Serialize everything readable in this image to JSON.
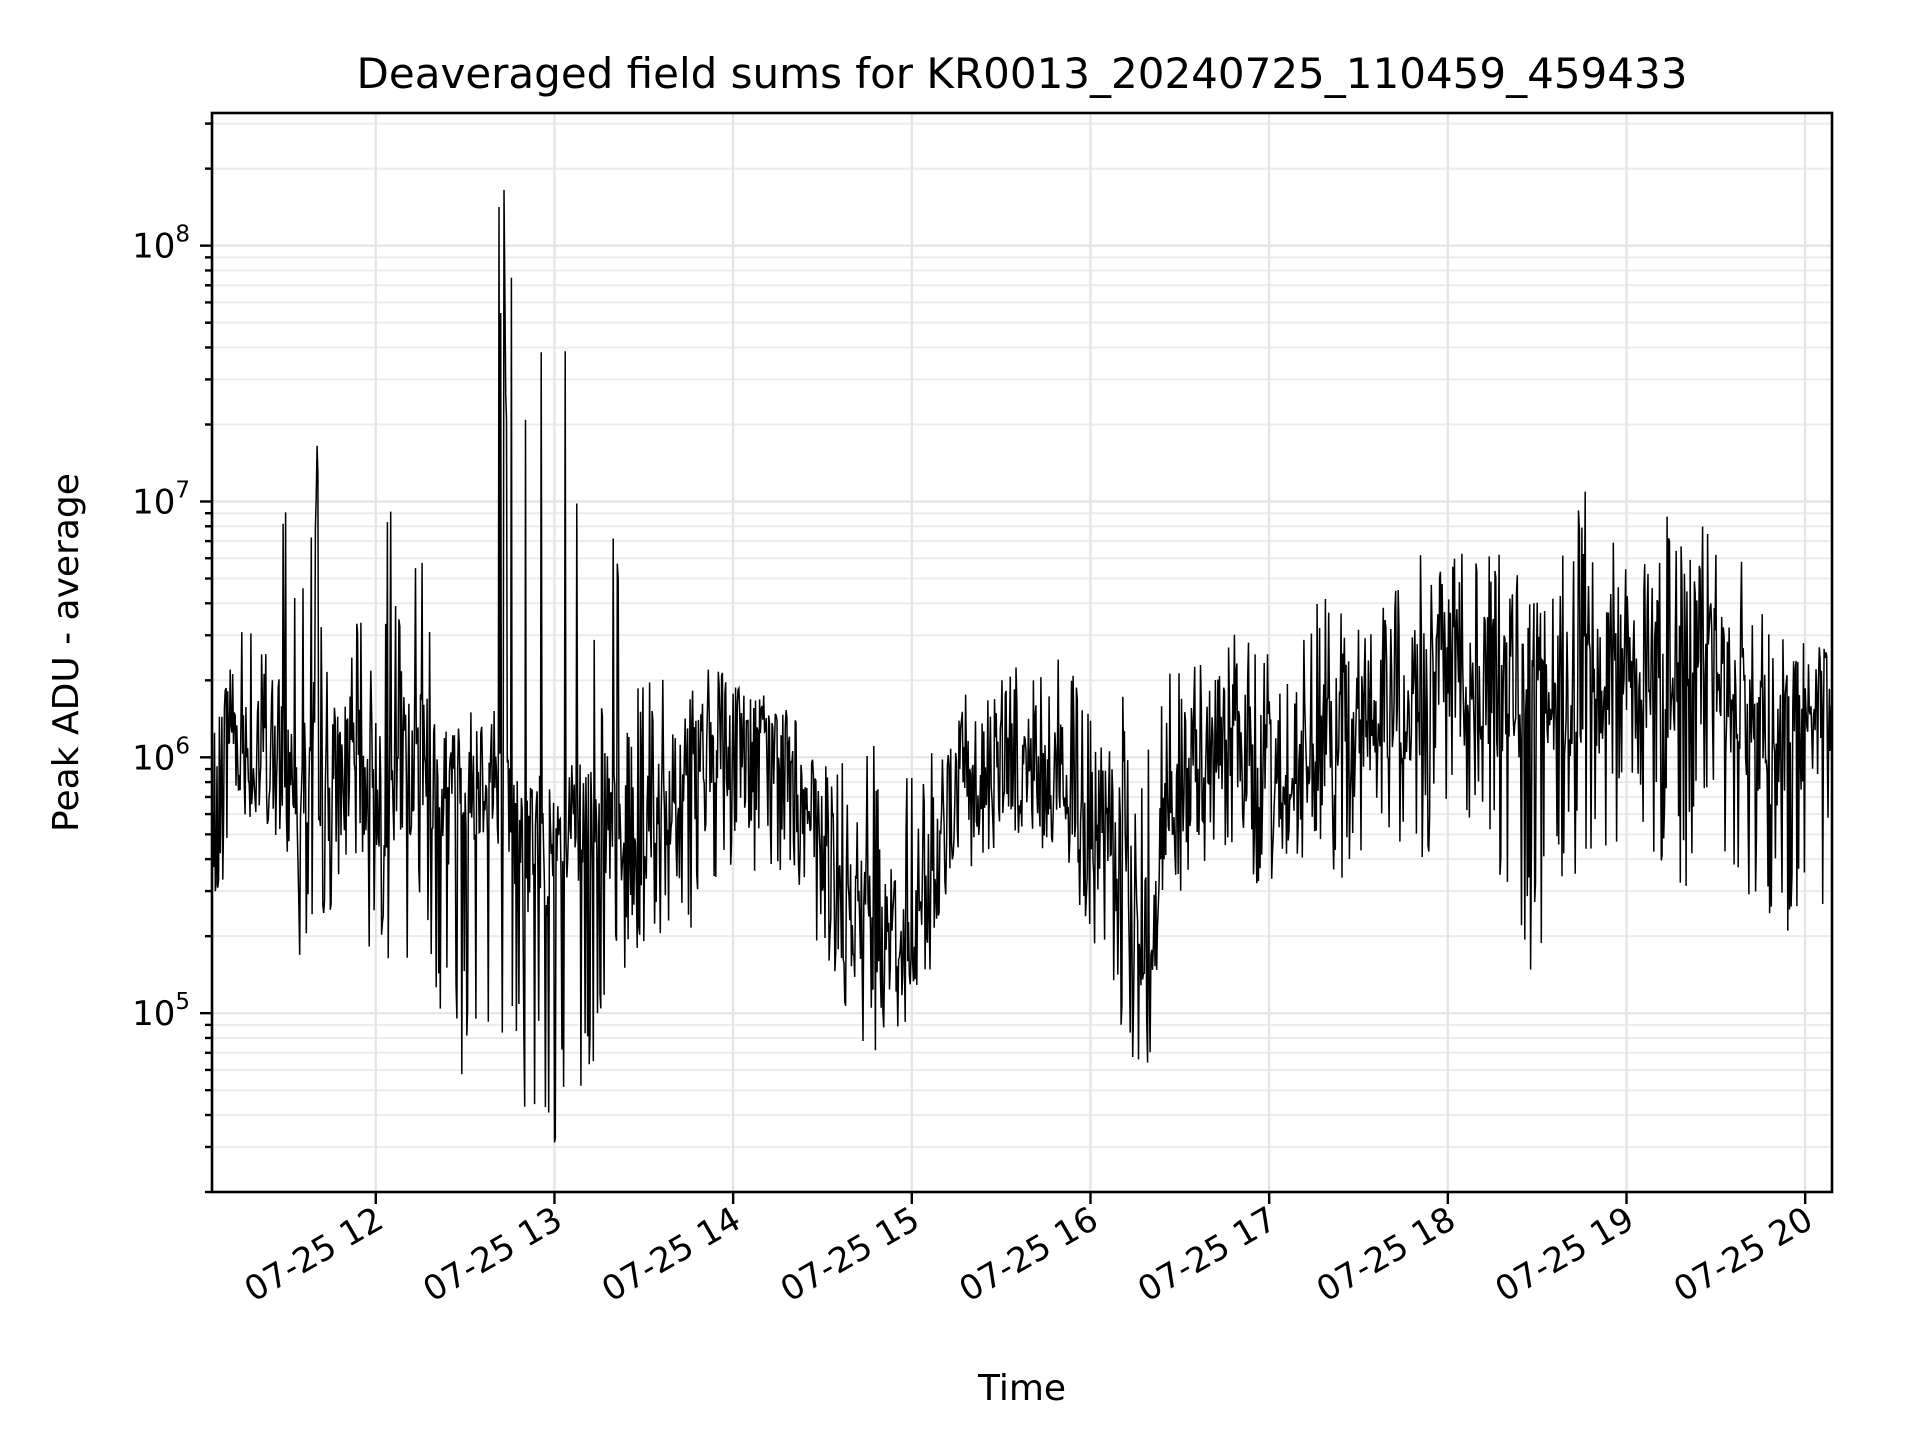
{
  "chart_data": {
    "type": "line",
    "title": "Deaveraged field sums for KR0013_20240725_110459_459433",
    "xlabel": "Time",
    "ylabel": "Peak ADU - average",
    "yscale": "log",
    "grid": true,
    "legend": "none",
    "xlim": [
      "2024-07-25 11:05",
      "2024-07-25 20:09"
    ],
    "ylim": [
      20000,
      330000000
    ],
    "x_ticks": [
      {
        "t": "2024-07-25 12:00",
        "label": "07-25 12"
      },
      {
        "t": "2024-07-25 13:00",
        "label": "07-25 13"
      },
      {
        "t": "2024-07-25 14:00",
        "label": "07-25 14"
      },
      {
        "t": "2024-07-25 15:00",
        "label": "07-25 15"
      },
      {
        "t": "2024-07-25 16:00",
        "label": "07-25 16"
      },
      {
        "t": "2024-07-25 17:00",
        "label": "07-25 17"
      },
      {
        "t": "2024-07-25 18:00",
        "label": "07-25 18"
      },
      {
        "t": "2024-07-25 19:00",
        "label": "07-25 19"
      },
      {
        "t": "2024-07-25 20:00",
        "label": "07-25 20"
      }
    ],
    "y_ticks": [
      {
        "value": 100000,
        "base": "10",
        "exp": "5"
      },
      {
        "value": 1000000,
        "base": "10",
        "exp": "6"
      },
      {
        "value": 10000000,
        "base": "10",
        "exp": "7"
      },
      {
        "value": 100000000,
        "base": "10",
        "exp": "8"
      }
    ],
    "series": [
      {
        "color": "#000000",
        "x": [
          "2024-07-25 11:05",
          "2024-07-25 11:10",
          "2024-07-25 11:15",
          "2024-07-25 11:20",
          "2024-07-25 11:25",
          "2024-07-25 11:30",
          "2024-07-25 11:35",
          "2024-07-25 11:40",
          "2024-07-25 11:45",
          "2024-07-25 11:50",
          "2024-07-25 11:55",
          "2024-07-25 12:00",
          "2024-07-25 12:05",
          "2024-07-25 12:10",
          "2024-07-25 12:15",
          "2024-07-25 12:20",
          "2024-07-25 12:25",
          "2024-07-25 12:30",
          "2024-07-25 12:35",
          "2024-07-25 12:40",
          "2024-07-25 12:45",
          "2024-07-25 12:50",
          "2024-07-25 12:55",
          "2024-07-25 13:00",
          "2024-07-25 13:05",
          "2024-07-25 13:10",
          "2024-07-25 13:15",
          "2024-07-25 13:20",
          "2024-07-25 13:25",
          "2024-07-25 13:30",
          "2024-07-25 13:35",
          "2024-07-25 13:40",
          "2024-07-25 13:45",
          "2024-07-25 13:50",
          "2024-07-25 13:55",
          "2024-07-25 14:00",
          "2024-07-25 14:05",
          "2024-07-25 14:10",
          "2024-07-25 14:15",
          "2024-07-25 14:20",
          "2024-07-25 14:25",
          "2024-07-25 14:30",
          "2024-07-25 14:35",
          "2024-07-25 14:40",
          "2024-07-25 14:45",
          "2024-07-25 14:50",
          "2024-07-25 14:55",
          "2024-07-25 15:00",
          "2024-07-25 15:05",
          "2024-07-25 15:10",
          "2024-07-25 15:15",
          "2024-07-25 15:20",
          "2024-07-25 15:25",
          "2024-07-25 15:30",
          "2024-07-25 15:35",
          "2024-07-25 15:40",
          "2024-07-25 15:45",
          "2024-07-25 15:50",
          "2024-07-25 15:55",
          "2024-07-25 16:00",
          "2024-07-25 16:05",
          "2024-07-25 16:10",
          "2024-07-25 16:15",
          "2024-07-25 16:20",
          "2024-07-25 16:25",
          "2024-07-25 16:30",
          "2024-07-25 16:35",
          "2024-07-25 16:40",
          "2024-07-25 16:45",
          "2024-07-25 16:50",
          "2024-07-25 16:55",
          "2024-07-25 17:00",
          "2024-07-25 17:05",
          "2024-07-25 17:10",
          "2024-07-25 17:15",
          "2024-07-25 17:20",
          "2024-07-25 17:25",
          "2024-07-25 17:30",
          "2024-07-25 17:35",
          "2024-07-25 17:40",
          "2024-07-25 17:45",
          "2024-07-25 17:50",
          "2024-07-25 17:55",
          "2024-07-25 18:00",
          "2024-07-25 18:05",
          "2024-07-25 18:10",
          "2024-07-25 18:15",
          "2024-07-25 18:20",
          "2024-07-25 18:25",
          "2024-07-25 18:30",
          "2024-07-25 18:35",
          "2024-07-25 18:40",
          "2024-07-25 18:45",
          "2024-07-25 18:50",
          "2024-07-25 18:55",
          "2024-07-25 19:00",
          "2024-07-25 19:05",
          "2024-07-25 19:10",
          "2024-07-25 19:15",
          "2024-07-25 19:20",
          "2024-07-25 19:25",
          "2024-07-25 19:30",
          "2024-07-25 19:35",
          "2024-07-25 19:40",
          "2024-07-25 19:45",
          "2024-07-25 19:50",
          "2024-07-25 19:55",
          "2024-07-25 20:00",
          "2024-07-25 20:05",
          "2024-07-25 20:09"
        ],
        "y": [
          300000,
          1500000,
          1200000,
          900000,
          1000000,
          1200000,
          900000,
          1100000,
          700000,
          1000000,
          800000,
          800000,
          700000,
          900000,
          1000000,
          800000,
          700000,
          800000,
          900000,
          900000,
          600000,
          400000,
          500000,
          400000,
          500000,
          500000,
          600000,
          500000,
          400000,
          600000,
          600000,
          700000,
          1000000,
          900000,
          1200000,
          1000000,
          1100000,
          900000,
          1000000,
          800000,
          600000,
          400000,
          300000,
          200000,
          300000,
          250000,
          200000,
          150000,
          300000,
          500000,
          700000,
          900000,
          1000000,
          1000000,
          1100000,
          900000,
          800000,
          1000000,
          700000,
          600000,
          500000,
          400000,
          200000,
          200000,
          500000,
          800000,
          900000,
          1000000,
          1200000,
          1100000,
          900000,
          900000,
          1000000,
          900000,
          900000,
          1100000,
          1300000,
          1300000,
          1500000,
          1800000,
          1600000,
          1900000,
          2000000,
          2000000,
          1900000,
          1800000,
          2000000,
          1600000,
          1900000,
          2200000,
          1500000,
          2000000,
          1600000,
          1800000,
          2200000,
          2500000,
          2000000,
          2200000,
          2200000,
          2800000,
          2300000,
          2300000,
          1800000,
          1500000,
          1300000,
          1100000,
          1200000,
          1400000,
          1600000,
          1400000
        ],
        "y_high": [
          1200000,
          2000000,
          5000000,
          3000000,
          2500000,
          25000000,
          5000000,
          20000000,
          1600000,
          1600000,
          5000000,
          1500000,
          20000000,
          1500000,
          15000000,
          1500000,
          1400000,
          1800000,
          210000000,
          200000000,
          200000000,
          190000000,
          150000000,
          70000000,
          40000000,
          60000000,
          2000000,
          13000000,
          1800000,
          2000000,
          2800000,
          4000000,
          2000000,
          2200000,
          2200000,
          2000000,
          2000000,
          1800000,
          1600000,
          1000000,
          1200000,
          1000000,
          1000000,
          900000,
          1400000,
          1500000,
          1000000,
          900000,
          1000000,
          1500000,
          1800000,
          2000000,
          2200000,
          3000000,
          2500000,
          2500000,
          2500000,
          2500000,
          2400000,
          1400000,
          1000000,
          2000000,
          1000000,
          1200000,
          2500000,
          2400000,
          2800000,
          2500000,
          2600000,
          4000000,
          3000000,
          2500000,
          2600000,
          2800000,
          4000000,
          4300000,
          4000000,
          4500000,
          5000000,
          5000000,
          5500000,
          9500000,
          5000000,
          6000000,
          6500000,
          6500000,
          6500000,
          6000000,
          6000000,
          5500000,
          6000000,
          7000000,
          13000000,
          8000000,
          7000000,
          7000000,
          8000000,
          6000000,
          11000000,
          7000000,
          9000000,
          7500000,
          8500000,
          6000000,
          5500000,
          3000000,
          3000000,
          3000000,
          2800000,
          2400000
        ],
        "y_low": [
          300000,
          300000,
          800000,
          600000,
          500000,
          400000,
          150000,
          200000,
          150000,
          300000,
          300000,
          100000,
          100000,
          60000,
          200000,
          100000,
          50000,
          40000,
          50000,
          40000,
          40000,
          40000,
          35000,
          30000,
          50000,
          50000,
          30000,
          150000,
          150000,
          150000,
          180000,
          200000,
          200000,
          250000,
          300000,
          350000,
          400000,
          300000,
          350000,
          300000,
          200000,
          150000,
          70000,
          60000,
          80000,
          60000,
          60000,
          55000,
          100000,
          200000,
          300000,
          300000,
          400000,
          400000,
          500000,
          400000,
          400000,
          400000,
          300000,
          150000,
          150000,
          90000,
          60000,
          60000,
          200000,
          300000,
          300000,
          400000,
          400000,
          400000,
          300000,
          300000,
          400000,
          400000,
          350000,
          400000,
          300000,
          400000,
          400000,
          400000,
          400000,
          400000,
          400000,
          500000,
          400000,
          450000,
          300000,
          250000,
          200000,
          100000,
          200000,
          300000,
          300000,
          300000,
          400000,
          400000,
          500000,
          400000,
          300000,
          300000,
          400000,
          500000,
          300000,
          300000,
          200000,
          200000,
          200000,
          300000,
          200000,
          450000
        ]
      }
    ]
  }
}
